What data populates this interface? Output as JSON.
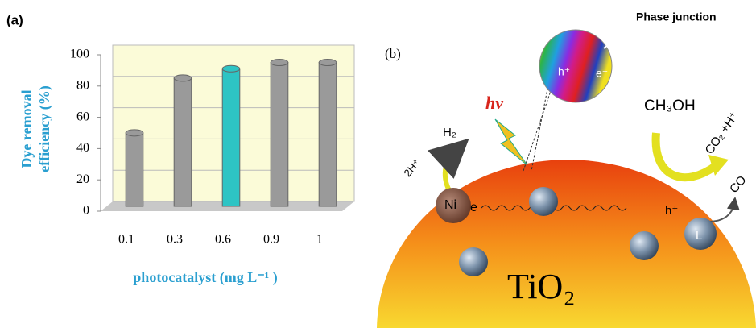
{
  "chart_data": {
    "type": "bar",
    "title": "(a)",
    "categories": [
      "0.1",
      "0.3",
      "0.6",
      "0.9",
      "1"
    ],
    "values": [
      47,
      82,
      88,
      92,
      92
    ],
    "colors": [
      "#9a9a9a",
      "#9a9a9a",
      "#2ec4c4",
      "#9a9a9a",
      "#9a9a9a"
    ],
    "ylabel": [
      "Dye removal",
      "efficiency (%)"
    ],
    "xlabel": "photocatalyst (mg L⁻¹ )",
    "ylim": [
      0,
      100
    ],
    "yticks": [
      0,
      20,
      40,
      60,
      80,
      100
    ],
    "grid": true
  },
  "diagram": {
    "label": "(b)",
    "phase_junction": "Phase junction",
    "junction_hole": "h⁺",
    "junction_electron": "e⁻",
    "light": "hν",
    "methanol": "CH₃OH",
    "products": "CO₂ +H⁺",
    "co": "CO",
    "hydrogen": "H₂",
    "protons": "2H⁺",
    "nickel": "Ni",
    "electron": "e",
    "hole": "h⁺",
    "ligand": "L",
    "support": "TiO₂"
  }
}
